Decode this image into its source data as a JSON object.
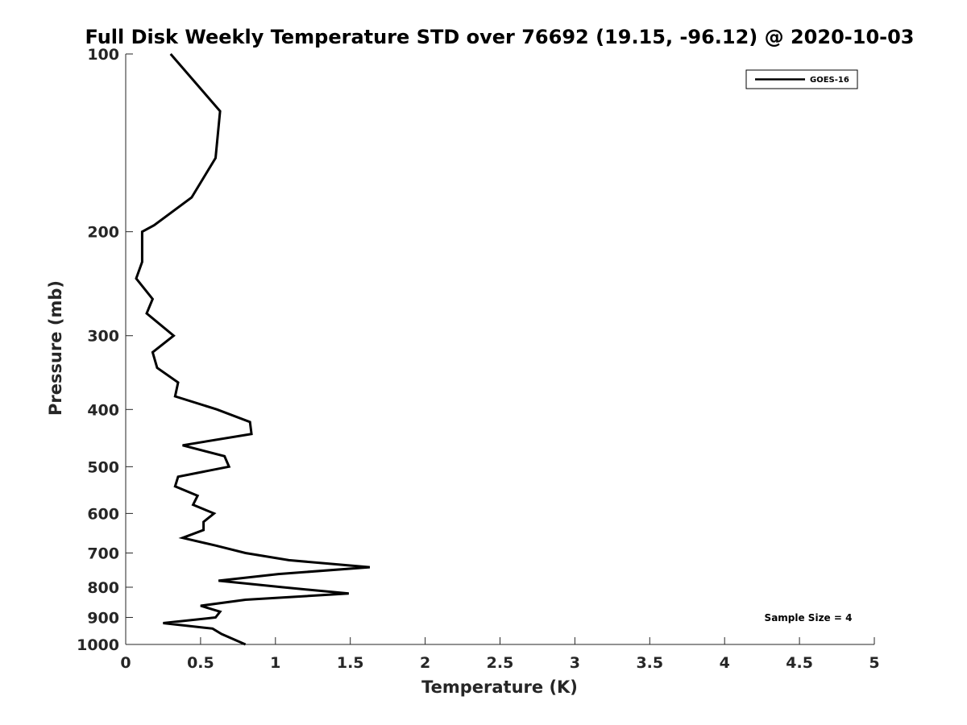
{
  "chart_data": {
    "type": "line",
    "title": "Full Disk Weekly Temperature STD over 76692 (19.15, -96.12) @ 2020-10-03",
    "xlabel": "Temperature (K)",
    "ylabel": "Pressure (mb)",
    "xlim": [
      0,
      5
    ],
    "ylim": [
      100,
      1000
    ],
    "y_scale": "log",
    "y_reversed": true,
    "x_ticks": [
      0,
      0.5,
      1,
      1.5,
      2,
      2.5,
      3,
      3.5,
      4,
      4.5,
      5
    ],
    "x_tick_labels": [
      "0",
      "0.5",
      "1",
      "1.5",
      "2",
      "2.5",
      "3",
      "3.5",
      "4",
      "4.5",
      "5"
    ],
    "y_ticks": [
      100,
      200,
      300,
      400,
      500,
      600,
      700,
      800,
      900,
      1000
    ],
    "y_tick_labels": [
      "100",
      "200",
      "300",
      "400",
      "500",
      "600",
      "700",
      "800",
      "900",
      "1000"
    ],
    "grid": false,
    "legend_position": "top-right",
    "annotation": "Sample Size = 4",
    "line_color": "#000000",
    "series": [
      {
        "name": "GOES-16",
        "points": [
          [
            0.3,
            100
          ],
          [
            0.63,
            125
          ],
          [
            0.6,
            150
          ],
          [
            0.44,
            175
          ],
          [
            0.19,
            195
          ],
          [
            0.11,
            200
          ],
          [
            0.11,
            225
          ],
          [
            0.07,
            240
          ],
          [
            0.18,
            260
          ],
          [
            0.14,
            275
          ],
          [
            0.32,
            300
          ],
          [
            0.18,
            320
          ],
          [
            0.21,
            340
          ],
          [
            0.35,
            360
          ],
          [
            0.33,
            380
          ],
          [
            0.61,
            400
          ],
          [
            0.83,
            420
          ],
          [
            0.84,
            440
          ],
          [
            0.38,
            460
          ],
          [
            0.66,
            480
          ],
          [
            0.69,
            500
          ],
          [
            0.35,
            520
          ],
          [
            0.33,
            540
          ],
          [
            0.48,
            560
          ],
          [
            0.45,
            580
          ],
          [
            0.59,
            600
          ],
          [
            0.52,
            620
          ],
          [
            0.52,
            640
          ],
          [
            0.38,
            660
          ],
          [
            0.6,
            680
          ],
          [
            0.8,
            700
          ],
          [
            1.09,
            720
          ],
          [
            1.63,
            740
          ],
          [
            1.02,
            760
          ],
          [
            0.62,
            780
          ],
          [
            1.05,
            800
          ],
          [
            1.49,
            820
          ],
          [
            0.8,
            840
          ],
          [
            0.5,
            860
          ],
          [
            0.63,
            880
          ],
          [
            0.6,
            900
          ],
          [
            0.25,
            920
          ],
          [
            0.58,
            940
          ],
          [
            0.64,
            960
          ],
          [
            0.8,
            1000
          ]
        ]
      }
    ]
  }
}
